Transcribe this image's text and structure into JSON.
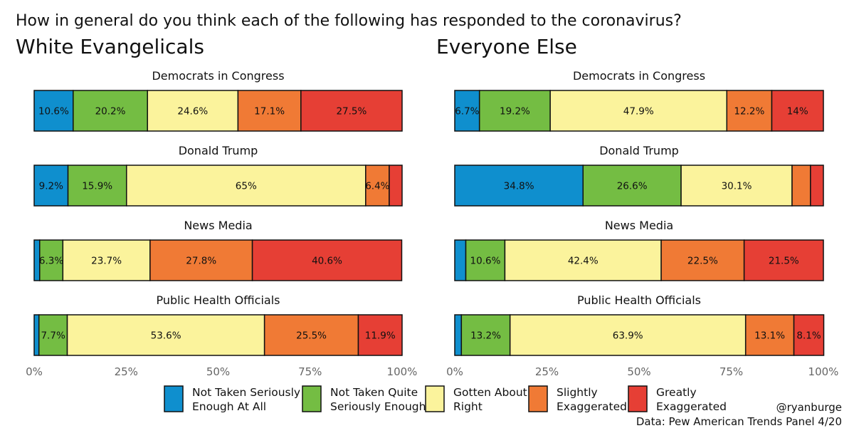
{
  "question": "How in general do you think each of the following has responded to the coronavirus?",
  "credit": "@ryanburge",
  "source": "Data: Pew American Trends Panel 4/20",
  "colors": {
    "not_at_all": "#0f8fce",
    "not_quite": "#74bd43",
    "about_right": "#fbf39c",
    "slightly": "#f07a35",
    "greatly": "#e63f35"
  },
  "chart_data": [
    {
      "type": "bar",
      "orientation": "horizontal",
      "stacked": true,
      "title": "White Evangelicals",
      "categories": [
        "Democrats in Congress",
        "Donald Trump",
        "News Media",
        "Public Health Officials"
      ],
      "xlim": [
        0,
        100
      ],
      "xticks": [
        "0%",
        "25%",
        "50%",
        "75%",
        "100%"
      ],
      "series": [
        {
          "name": "Not Taken Seriously Enough At All",
          "values": [
            10.6,
            9.2,
            1.5,
            1.3
          ],
          "labels": [
            "10.6%",
            "9.2%",
            "",
            ""
          ]
        },
        {
          "name": "Not Taken Quite Seriously Enough",
          "values": [
            20.2,
            15.9,
            6.3,
            7.7
          ],
          "labels": [
            "20.2%",
            "15.9%",
            "6.3%",
            "7.7%"
          ]
        },
        {
          "name": "Gotten About Right",
          "values": [
            24.6,
            65,
            23.7,
            53.6
          ],
          "labels": [
            "24.6%",
            "65%",
            "23.7%",
            "53.6%"
          ]
        },
        {
          "name": "Slightly Exaggerated",
          "values": [
            17.1,
            6.4,
            27.8,
            25.5
          ],
          "labels": [
            "17.1%",
            "6.4%",
            "27.8%",
            "25.5%"
          ]
        },
        {
          "name": "Greatly Exaggerated",
          "values": [
            27.5,
            3.5,
            40.6,
            11.9
          ],
          "labels": [
            "27.5%",
            "",
            "40.6%",
            "11.9%"
          ]
        }
      ]
    },
    {
      "type": "bar",
      "orientation": "horizontal",
      "stacked": true,
      "title": "Everyone Else",
      "categories": [
        "Democrats in Congress",
        "Donald Trump",
        "News Media",
        "Public Health Officials"
      ],
      "xlim": [
        0,
        100
      ],
      "xticks": [
        "0%",
        "25%",
        "50%",
        "75%",
        "100%"
      ],
      "series": [
        {
          "name": "Not Taken Seriously Enough At All",
          "values": [
            6.7,
            34.8,
            3.0,
            1.8
          ],
          "labels": [
            "6.7%",
            "34.8%",
            "",
            ""
          ]
        },
        {
          "name": "Not Taken Quite Seriously Enough",
          "values": [
            19.2,
            26.6,
            10.6,
            13.2
          ],
          "labels": [
            "19.2%",
            "26.6%",
            "10.6%",
            "13.2%"
          ]
        },
        {
          "name": "Gotten About Right",
          "values": [
            47.9,
            30.1,
            42.4,
            63.9
          ],
          "labels": [
            "47.9%",
            "30.1%",
            "42.4%",
            "63.9%"
          ]
        },
        {
          "name": "Slightly Exaggerated",
          "values": [
            12.2,
            5.0,
            22.5,
            13.1
          ],
          "labels": [
            "12.2%",
            "",
            "22.5%",
            "13.1%"
          ]
        },
        {
          "name": "Greatly Exaggerated",
          "values": [
            14,
            3.5,
            21.5,
            8.1
          ],
          "labels": [
            "14%",
            "",
            "21.5%",
            "8.1%"
          ]
        }
      ]
    }
  ],
  "legend": [
    {
      "key": "not_at_all",
      "line1": "Not Taken Seriously",
      "line2": "Enough At All"
    },
    {
      "key": "not_quite",
      "line1": "Not Taken Quite",
      "line2": "Seriously Enough"
    },
    {
      "key": "about_right",
      "line1": "Gotten About",
      "line2": "Right"
    },
    {
      "key": "slightly",
      "line1": "Slightly",
      "line2": "Exaggerated"
    },
    {
      "key": "greatly",
      "line1": "Greatly",
      "line2": "Exaggerated"
    }
  ]
}
